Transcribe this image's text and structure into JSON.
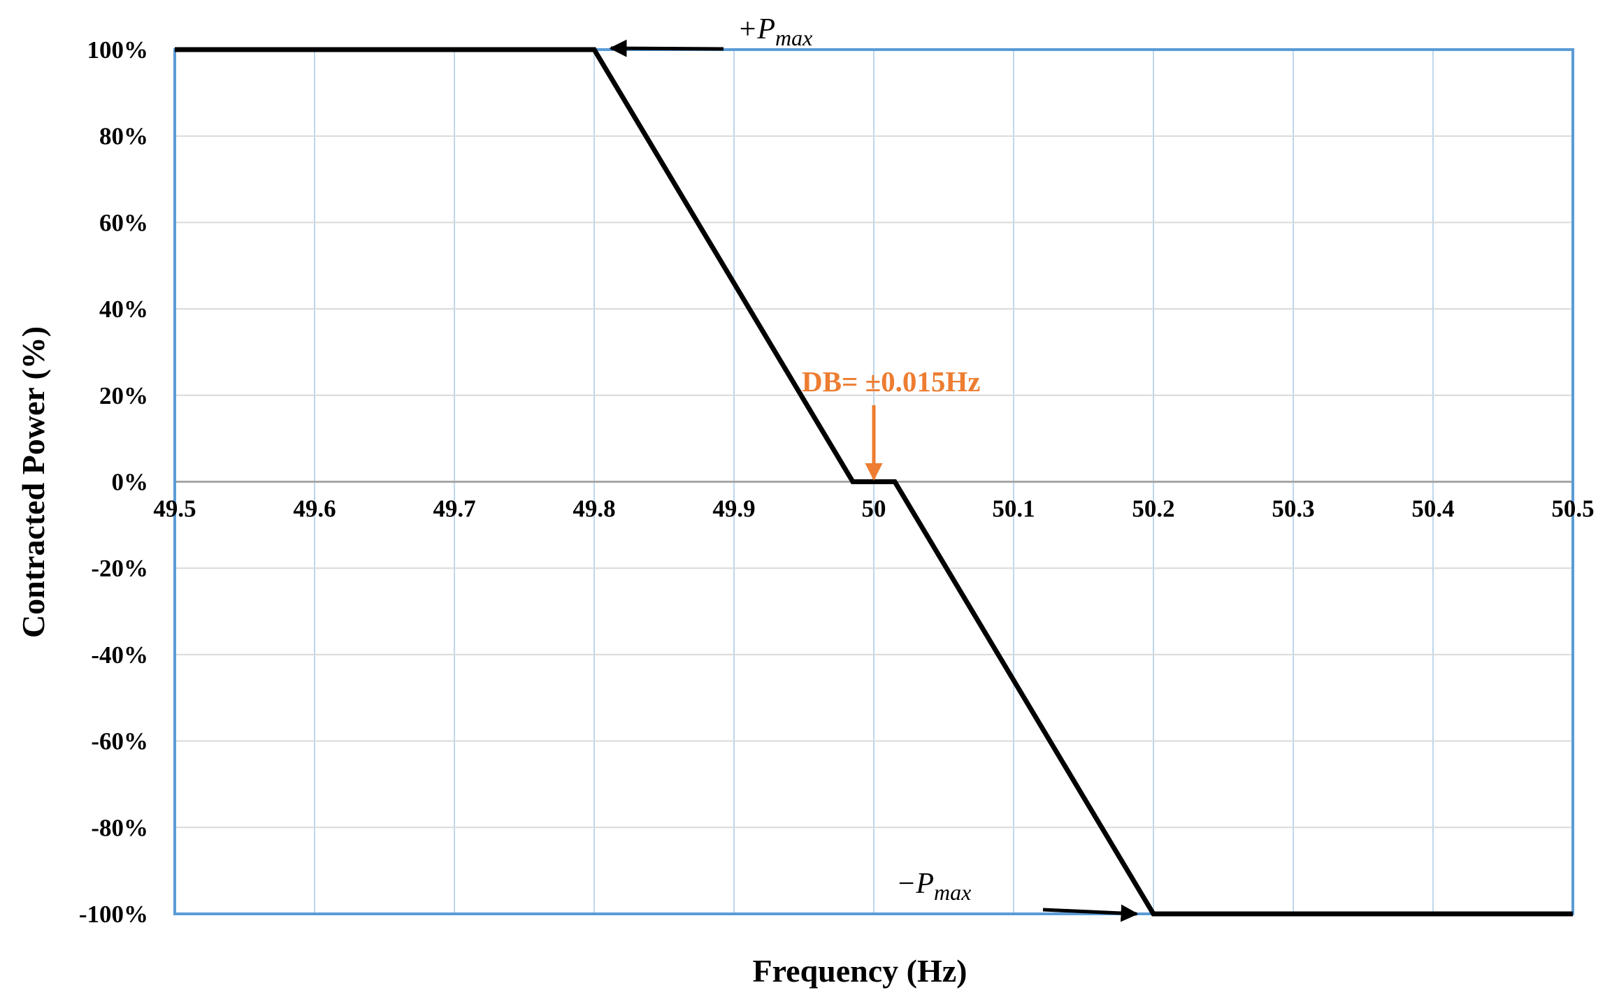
{
  "chart_data": {
    "type": "line",
    "title": "",
    "xlabel": "Frequency (Hz)",
    "ylabel": "Contracted Power (%)",
    "xlim": [
      49.5,
      50.5
    ],
    "ylim": [
      -100,
      100
    ],
    "x_ticks": [
      49.5,
      49.6,
      49.7,
      49.8,
      49.9,
      50,
      50.1,
      50.2,
      50.3,
      50.4,
      50.5
    ],
    "x_tick_labels": [
      "49.5",
      "49.6",
      "49.7",
      "49.8",
      "49.9",
      "50",
      "50.1",
      "50.2",
      "50.3",
      "50.4",
      "50.5"
    ],
    "y_ticks": [
      100,
      80,
      60,
      40,
      20,
      0,
      -20,
      -40,
      -60,
      -80,
      -100
    ],
    "y_tick_labels": [
      "100%",
      "80%",
      "60%",
      "40%",
      "20%",
      "0%",
      "-20%",
      "-40%",
      "-60%",
      "-80%",
      "-100%"
    ],
    "grid": true,
    "series": [
      {
        "x": [
          49.5,
          49.8,
          49.985,
          50.015,
          50.2,
          50.5
        ],
        "y": [
          100,
          100,
          0,
          0,
          -100,
          -100
        ],
        "color": "#000000"
      }
    ],
    "annotations": [
      {
        "id": "pmax_pos",
        "sign": "+",
        "base": "P",
        "sub": "max",
        "points_to": [
          49.81,
          100
        ]
      },
      {
        "id": "pmax_neg",
        "sign": "−",
        "base": "P",
        "sub": "max",
        "points_to": [
          50.19,
          -100
        ]
      },
      {
        "id": "deadband",
        "text": "DB= ±0.015Hz",
        "points_to": [
          50,
          0
        ],
        "color": "#ED7D31"
      }
    ],
    "colors": {
      "frame": "#5B9BD5",
      "grid_vertical": "#BDD7EE",
      "grid_horizontal": "#D9D9D9",
      "zero_line": "#A6A6A6",
      "annotation": "#ED7D31"
    }
  }
}
